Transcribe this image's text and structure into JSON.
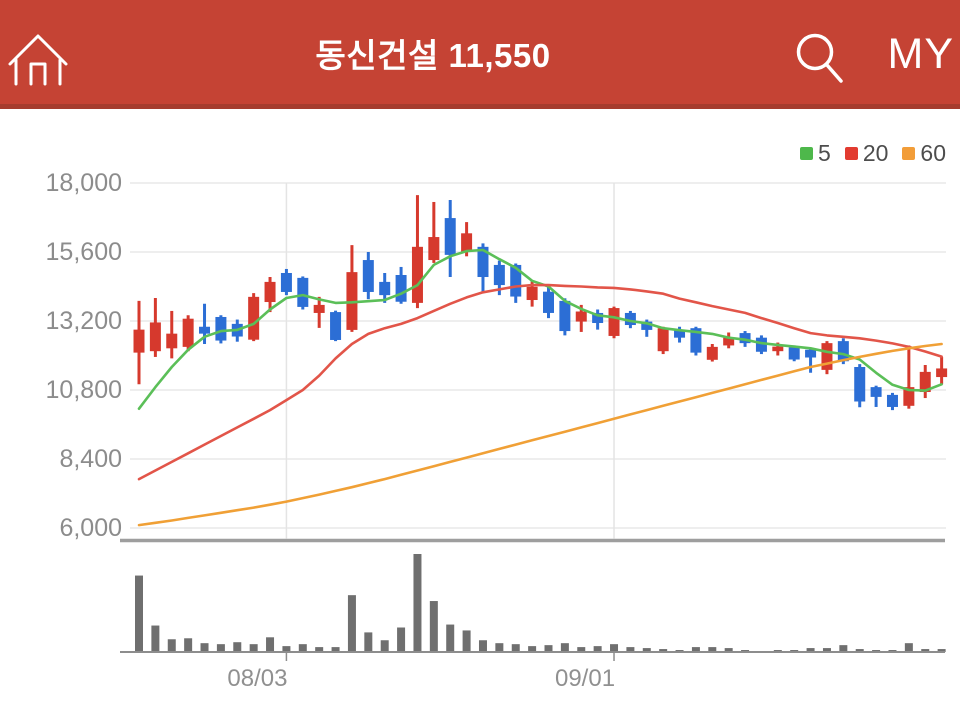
{
  "header": {
    "title": "동신건설 11,550",
    "my_label": "MY",
    "colors": {
      "background": "#c54334",
      "border": "#a63c2e",
      "text": "#ffffff"
    }
  },
  "legend": {
    "items": [
      {
        "label": "5",
        "color": "#4eb84b"
      },
      {
        "label": "20",
        "color": "#e23b30"
      },
      {
        "label": "60",
        "color": "#f29d38"
      }
    ]
  },
  "chart_data": {
    "type": "candlestick",
    "stock_name": "동신건설",
    "current_price": 11550,
    "ylim": [
      6000,
      18000
    ],
    "grid": true,
    "y_ticks": [
      {
        "value": 18000,
        "label": "18,000"
      },
      {
        "value": 15600,
        "label": "15,600"
      },
      {
        "value": 13200,
        "label": "13,200"
      },
      {
        "value": 10800,
        "label": "10,800"
      },
      {
        "value": 8400,
        "label": "8,400"
      },
      {
        "value": 6000,
        "label": "6,000"
      }
    ],
    "x_ticks": [
      {
        "index": 9,
        "label": "08/03"
      },
      {
        "index": 29,
        "label": "09/01"
      }
    ],
    "candles_format": [
      "open",
      "high",
      "low",
      "close",
      "direction(u=up-red,d=down-blue)",
      "volume(0-100 relative)"
    ],
    "candles": [
      [
        12100,
        13900,
        11000,
        12900,
        "u",
        78
      ],
      [
        12150,
        14000,
        11950,
        13150,
        "u",
        27
      ],
      [
        12250,
        13550,
        11900,
        12760,
        "u",
        13
      ],
      [
        12300,
        13400,
        12150,
        13280,
        "u",
        14
      ],
      [
        13000,
        13800,
        12400,
        12760,
        "d",
        9
      ],
      [
        13340,
        13400,
        12420,
        12520,
        "d",
        8
      ],
      [
        13100,
        13250,
        12480,
        12660,
        "d",
        10
      ],
      [
        12550,
        14170,
        12500,
        14040,
        "u",
        8
      ],
      [
        13860,
        14730,
        13510,
        14560,
        "u",
        15
      ],
      [
        14870,
        15010,
        14100,
        14210,
        "d",
        6
      ],
      [
        14700,
        14750,
        13600,
        13690,
        "d",
        8
      ],
      [
        13480,
        14040,
        12960,
        13760,
        "u",
        5
      ],
      [
        13510,
        13560,
        12500,
        12540,
        "d",
        5
      ],
      [
        12890,
        15840,
        12820,
        14900,
        "u",
        58
      ],
      [
        15320,
        15600,
        13960,
        14210,
        "d",
        20
      ],
      [
        14560,
        14870,
        13830,
        14100,
        "d",
        12
      ],
      [
        14800,
        15080,
        13800,
        13870,
        "d",
        25
      ],
      [
        13830,
        17580,
        13650,
        15780,
        "u",
        100
      ],
      [
        15320,
        17340,
        15220,
        16120,
        "u",
        52
      ],
      [
        16780,
        17410,
        14730,
        15500,
        "d",
        28
      ],
      [
        15600,
        16640,
        15450,
        16250,
        "u",
        22
      ],
      [
        15780,
        15900,
        14200,
        14730,
        "d",
        12
      ],
      [
        15150,
        15300,
        14100,
        14450,
        "d",
        9
      ],
      [
        15150,
        15200,
        13830,
        14050,
        "d",
        8
      ],
      [
        13930,
        14600,
        13700,
        14390,
        "u",
        6
      ],
      [
        14220,
        14400,
        13300,
        13480,
        "d",
        7
      ],
      [
        13900,
        13990,
        12700,
        12850,
        "d",
        9
      ],
      [
        13180,
        13760,
        12820,
        13530,
        "u",
        5
      ],
      [
        13480,
        13600,
        12900,
        13130,
        "d",
        6
      ],
      [
        12680,
        13700,
        12600,
        13650,
        "u",
        8
      ],
      [
        13480,
        13550,
        12950,
        13060,
        "d",
        5
      ],
      [
        13180,
        13250,
        12650,
        12890,
        "d",
        4
      ],
      [
        12150,
        13000,
        12050,
        12950,
        "u",
        3
      ],
      [
        12890,
        13000,
        12450,
        12620,
        "d",
        2
      ],
      [
        12950,
        13000,
        12000,
        12100,
        "d",
        5
      ],
      [
        11850,
        12400,
        11790,
        12300,
        "u",
        5
      ],
      [
        12350,
        12800,
        12250,
        12620,
        "u",
        4
      ],
      [
        12780,
        12850,
        12300,
        12430,
        "d",
        2
      ],
      [
        12620,
        12700,
        12050,
        12130,
        "d",
        1
      ],
      [
        12150,
        12450,
        12000,
        12310,
        "u",
        2
      ],
      [
        12280,
        12350,
        11800,
        11860,
        "d",
        2
      ],
      [
        12200,
        12250,
        11400,
        11930,
        "d",
        4
      ],
      [
        11500,
        12500,
        11350,
        12430,
        "u",
        4
      ],
      [
        12500,
        12600,
        11700,
        11800,
        "d",
        7
      ],
      [
        11600,
        11700,
        10200,
        10400,
        "d",
        3
      ],
      [
        10900,
        10950,
        10210,
        10560,
        "d",
        2
      ],
      [
        10630,
        10700,
        10100,
        10210,
        "d",
        2
      ],
      [
        10250,
        12350,
        10150,
        10900,
        "u",
        9
      ],
      [
        10730,
        11670,
        10520,
        11430,
        "u",
        3
      ],
      [
        11250,
        11950,
        11000,
        11550,
        "u",
        3
      ]
    ],
    "series": [
      {
        "name": "MA5",
        "color": "#5bbf58",
        "values": [
          10150,
          10900,
          11600,
          12200,
          12650,
          12850,
          12890,
          13100,
          13600,
          14000,
          14100,
          13950,
          13830,
          13850,
          13890,
          13930,
          14150,
          14450,
          15150,
          15450,
          15630,
          15670,
          15350,
          15050,
          14600,
          14400,
          13900,
          13620,
          13400,
          13330,
          13200,
          13120,
          12950,
          12880,
          12820,
          12750,
          12620,
          12550,
          12430,
          12370,
          12310,
          12250,
          12130,
          12050,
          11860,
          11400,
          10980,
          10800,
          10780,
          11000
        ]
      },
      {
        "name": "MA20",
        "color": "#e25549",
        "values": [
          7700,
          8000,
          8300,
          8600,
          8900,
          9200,
          9500,
          9800,
          10100,
          10450,
          10800,
          11300,
          11900,
          12400,
          12750,
          12950,
          13100,
          13300,
          13550,
          13800,
          14020,
          14200,
          14300,
          14400,
          14450,
          14450,
          14420,
          14400,
          14370,
          14350,
          14300,
          14230,
          14150,
          13980,
          13850,
          13720,
          13600,
          13480,
          13300,
          13130,
          12950,
          12780,
          12700,
          12650,
          12600,
          12520,
          12420,
          12300,
          12140,
          11960
        ]
      },
      {
        "name": "MA60",
        "color": "#f0a036",
        "values": [
          6100,
          6180,
          6260,
          6350,
          6440,
          6530,
          6620,
          6710,
          6810,
          6920,
          7040,
          7160,
          7290,
          7420,
          7560,
          7700,
          7850,
          8000,
          8150,
          8300,
          8450,
          8600,
          8750,
          8900,
          9050,
          9200,
          9350,
          9500,
          9650,
          9800,
          9950,
          10100,
          10250,
          10400,
          10550,
          10700,
          10850,
          11000,
          11150,
          11300,
          11450,
          11600,
          11720,
          11840,
          11950,
          12060,
          12160,
          12250,
          12330,
          12400
        ]
      }
    ],
    "colors": {
      "up": "#d6392d",
      "down": "#2c6ed5",
      "volume": "#6f6f6f",
      "grid": "#e9e9e9",
      "axis_text": "#8c8c8c",
      "divider": "#9e9e9e",
      "axis_line": "#8d8d8d"
    }
  }
}
